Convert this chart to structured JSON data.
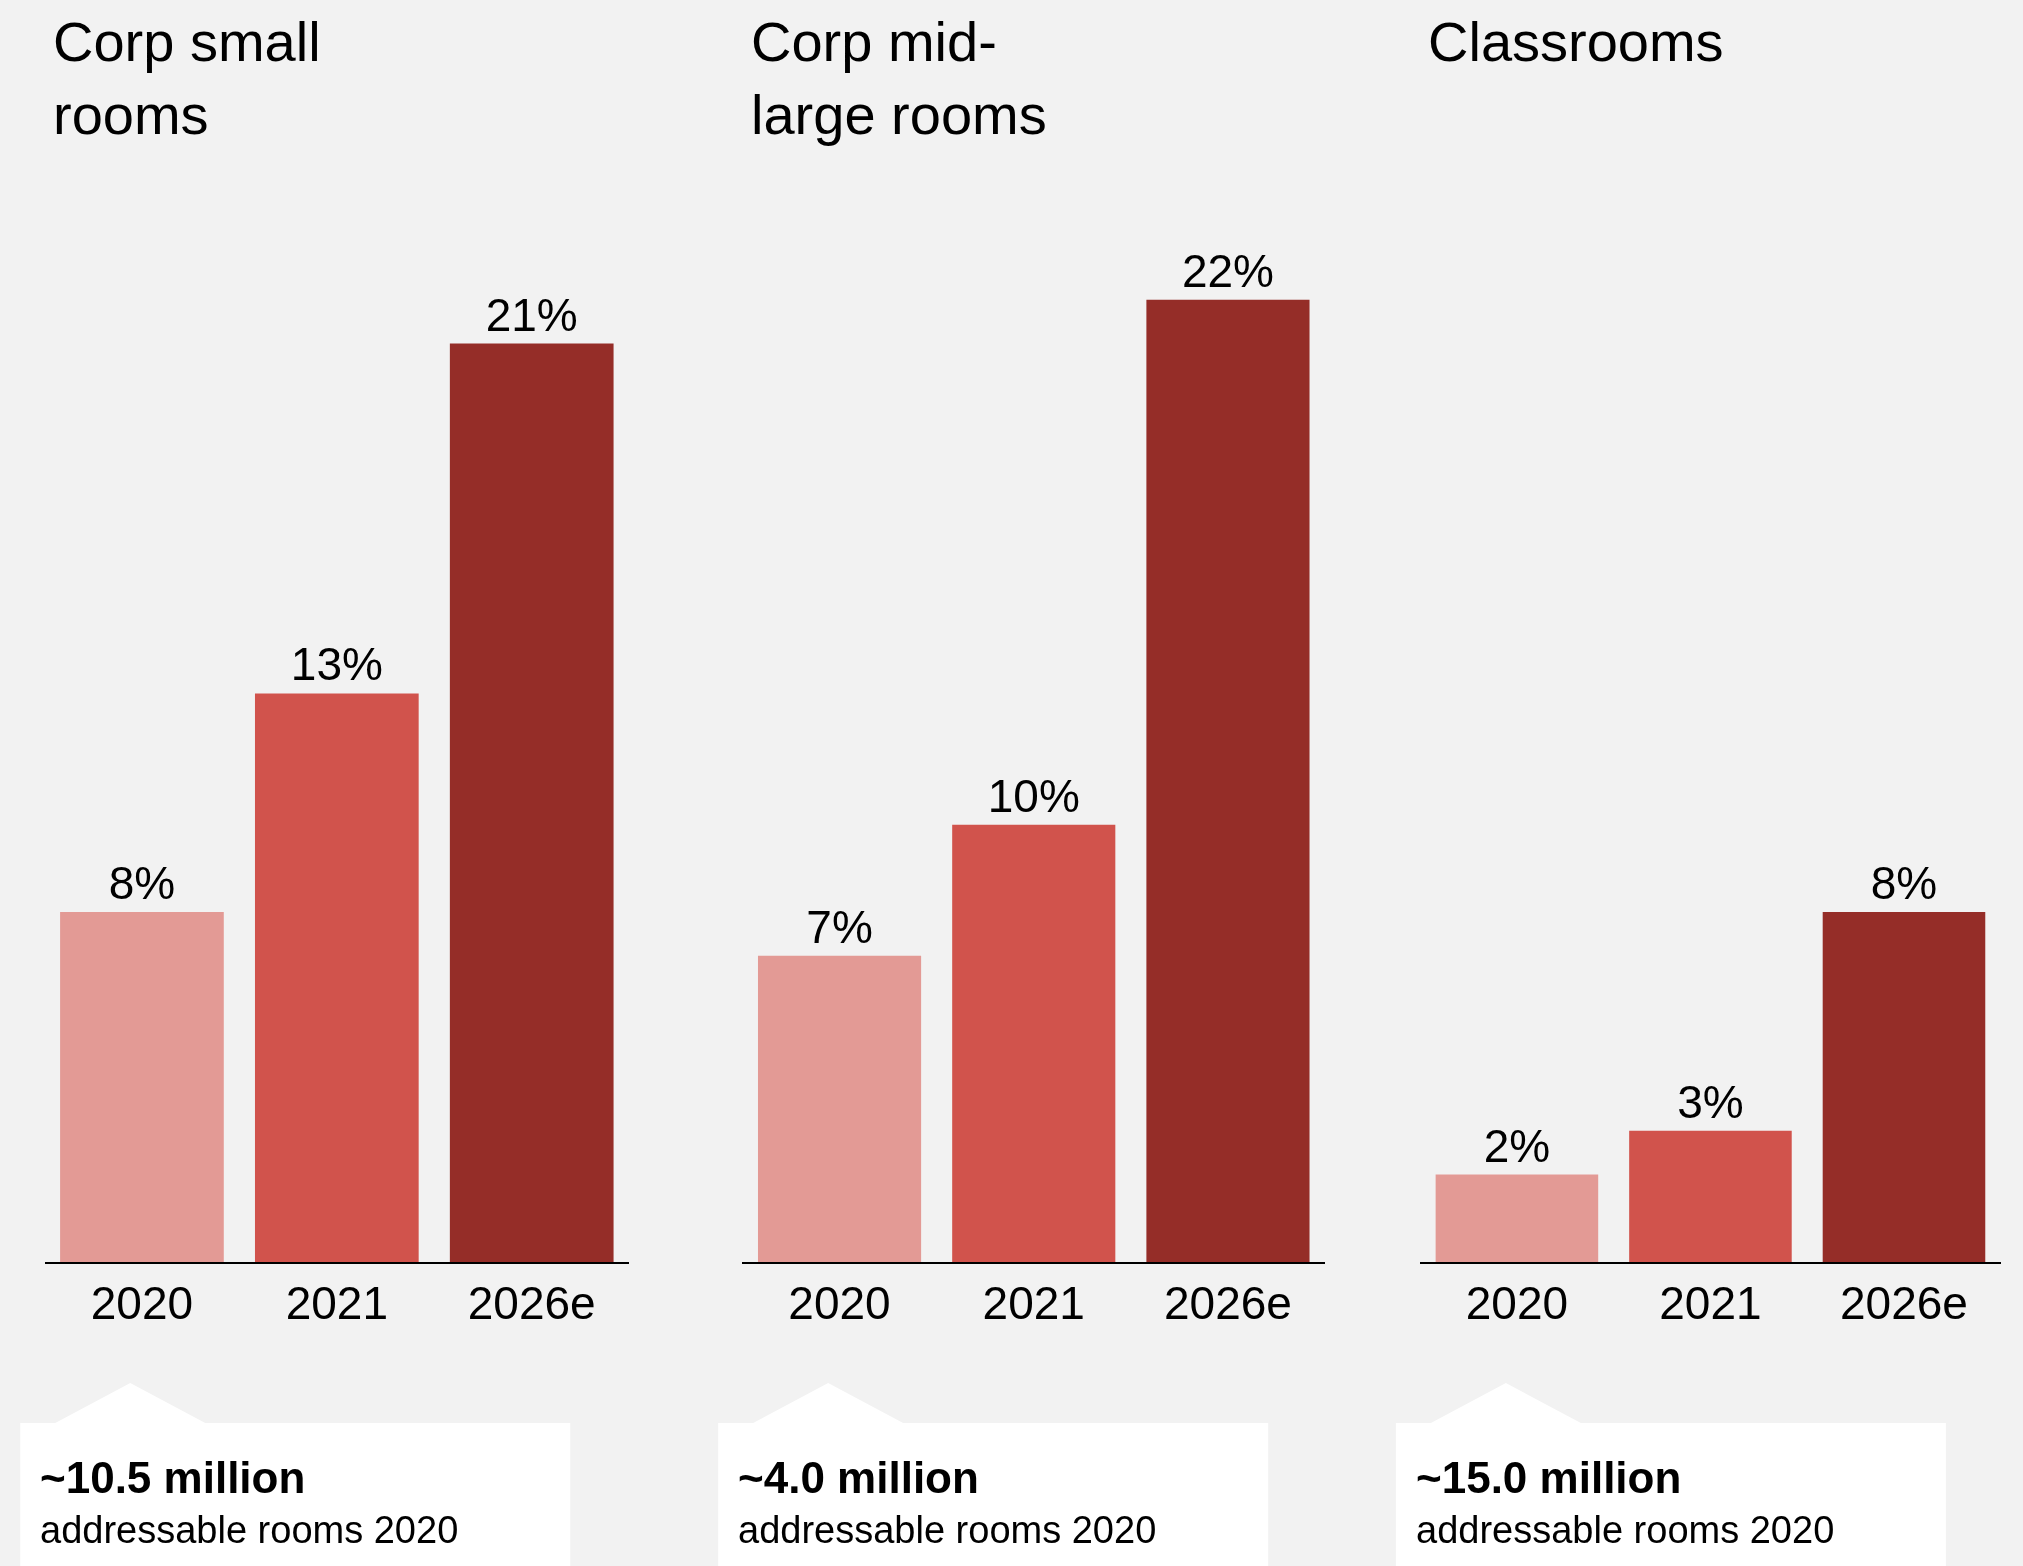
{
  "chart_data": [
    {
      "type": "bar",
      "title": "Corp small\nrooms",
      "categories": [
        "2020",
        "2021",
        "2026e"
      ],
      "values": [
        8,
        13,
        21
      ],
      "value_labels": [
        "8%",
        "13%",
        "21%"
      ],
      "colors": [
        "#e39a95",
        "#d1534c",
        "#952d28"
      ],
      "tick_labels": "x",
      "annotations": [
        "~10.5 million",
        "addressable rooms 2020"
      ]
    },
    {
      "type": "bar",
      "title": "Corp mid-\nlarge rooms",
      "categories": [
        "2020",
        "2021",
        "2026e"
      ],
      "values": [
        7,
        10,
        22
      ],
      "value_labels": [
        "7%",
        "10%",
        "22%"
      ],
      "colors": [
        "#e39a95",
        "#d1534c",
        "#952d28"
      ],
      "tick_labels": "x",
      "annotations": [
        "~4.0 million",
        "addressable rooms 2020"
      ]
    },
    {
      "type": "bar",
      "title": "Classrooms",
      "categories": [
        "2020",
        "2021",
        "2026e"
      ],
      "values": [
        2,
        3,
        8
      ],
      "value_labels": [
        "2%",
        "3%",
        "8%"
      ],
      "colors": [
        "#e39a95",
        "#d1534c",
        "#952d28"
      ],
      "tick_labels": "x",
      "annotations": [
        "~15.0 million",
        "addressable rooms 2020"
      ]
    }
  ]
}
